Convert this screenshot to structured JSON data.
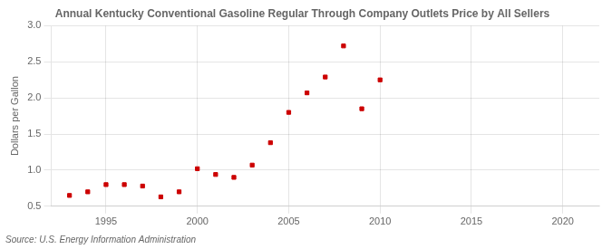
{
  "chart_data": {
    "type": "scatter",
    "title": "Annual Kentucky Conventional Gasoline Regular Through Company Outlets Price by All Sellers",
    "ylabel": "Dollars per Gallon",
    "source": "Source: U.S. Energy Information Administration",
    "x": [
      1993,
      1994,
      1995,
      1996,
      1997,
      1998,
      1999,
      2000,
      2001,
      2002,
      2003,
      2004,
      2005,
      2006,
      2007,
      2008,
      2009,
      2010
    ],
    "values": [
      0.65,
      0.7,
      0.8,
      0.8,
      0.78,
      0.63,
      0.7,
      1.02,
      0.94,
      0.9,
      1.07,
      1.38,
      1.8,
      2.07,
      2.29,
      2.72,
      1.85,
      2.25
    ],
    "color": "#cc0000",
    "marker": "square",
    "xlim": [
      1992,
      2022
    ],
    "ylim": [
      0.5,
      3.0
    ],
    "xticks": [
      1995,
      2000,
      2005,
      2010,
      2015,
      2020
    ],
    "yticks": [
      0.5,
      {
        "value": 1.0,
        "label": "1.0"
      },
      1.5,
      {
        "value": 2.0,
        "label": "2.0"
      },
      2.5,
      {
        "value": 3.0,
        "label": "3.0"
      }
    ],
    "grid": true
  }
}
